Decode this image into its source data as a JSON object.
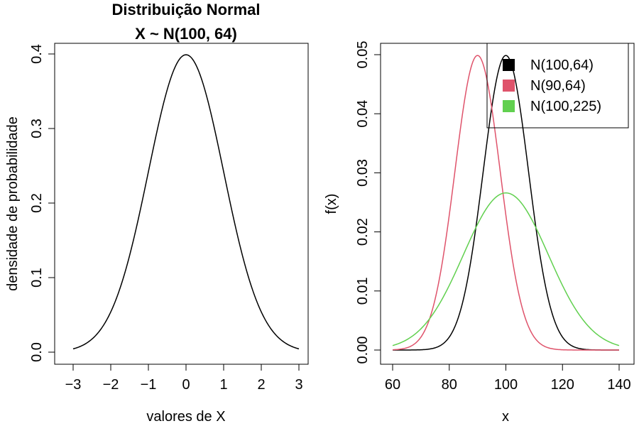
{
  "chart_data": [
    {
      "type": "line",
      "title": "Distribuição Normal",
      "subtitle": "X ~ N(100, 64)",
      "xlabel": "valores de X",
      "ylabel": "densidade de probabilidade",
      "xlim": [
        -3,
        3
      ],
      "ylim": [
        0,
        0.4
      ],
      "xticks": [
        "−3",
        "−2",
        "−1",
        "0",
        "1",
        "2",
        "3"
      ],
      "yticks": [
        "0.0",
        "0.1",
        "0.2",
        "0.3",
        "0.4"
      ],
      "series": [
        {
          "mean": 0,
          "sd": 1,
          "color": "#000000",
          "x": [
            -3,
            -2.5,
            -2,
            -1.5,
            -1,
            -0.5,
            0,
            0.5,
            1,
            1.5,
            2,
            2.5,
            3
          ],
          "values": [
            0.0044,
            0.0175,
            0.054,
            0.1295,
            0.242,
            0.3521,
            0.3989,
            0.3521,
            0.242,
            0.1295,
            0.054,
            0.0175,
            0.0044
          ]
        }
      ]
    },
    {
      "type": "line",
      "title": "",
      "xlabel": "x",
      "ylabel": "f(x)",
      "xlim": [
        60,
        140
      ],
      "ylim": [
        0,
        0.05
      ],
      "xticks": [
        "60",
        "80",
        "100",
        "120",
        "140"
      ],
      "yticks": [
        "0.00",
        "0.01",
        "0.02",
        "0.03",
        "0.04",
        "0.05"
      ],
      "legend_position": "top-right",
      "series": [
        {
          "name": "N(100,64)",
          "mean": 100,
          "sd": 8,
          "color": "#000000",
          "x": [
            60,
            70,
            80,
            90,
            100,
            110,
            120,
            130,
            140
          ],
          "values": [
            0.0,
            0.0002,
            0.0022,
            0.0228,
            0.0499,
            0.0228,
            0.0022,
            0.0002,
            0.0
          ]
        },
        {
          "name": "N(90,64)",
          "mean": 90,
          "sd": 8,
          "color": "#DF536B",
          "x": [
            60,
            70,
            80,
            90,
            100,
            110,
            120,
            130,
            140
          ],
          "values": [
            0.0,
            0.0022,
            0.0228,
            0.0499,
            0.0228,
            0.0022,
            0.0,
            0.0,
            0.0
          ]
        },
        {
          "name": "N(100,225)",
          "mean": 100,
          "sd": 15,
          "color": "#61D04F",
          "x": [
            60,
            70,
            80,
            90,
            100,
            110,
            120,
            130,
            140
          ],
          "values": [
            0.0007,
            0.0036,
            0.0109,
            0.0213,
            0.0266,
            0.0213,
            0.0109,
            0.0036,
            0.0007
          ]
        }
      ]
    }
  ]
}
